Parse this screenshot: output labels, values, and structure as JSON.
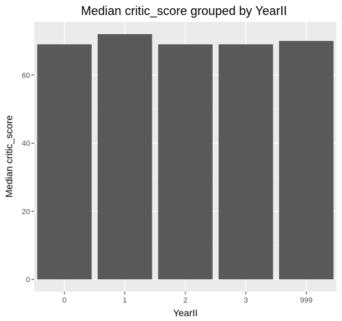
{
  "chart_data": {
    "type": "bar",
    "title": "Median critic_score grouped by YearII",
    "xlabel": "YearII",
    "ylabel": "Median critic_score",
    "categories": [
      "0",
      "1",
      "2",
      "3",
      "999"
    ],
    "values": [
      69,
      72,
      69,
      69,
      70
    ],
    "ylim": [
      -3.6,
      75.6
    ],
    "yticks": [
      0,
      20,
      40,
      60
    ],
    "grid": true,
    "colors": {
      "panel": "#ebebeb",
      "grid_major": "#ffffff",
      "grid_minor": "#f5f5f5",
      "bar": "#595959",
      "tick": "#333333"
    }
  }
}
